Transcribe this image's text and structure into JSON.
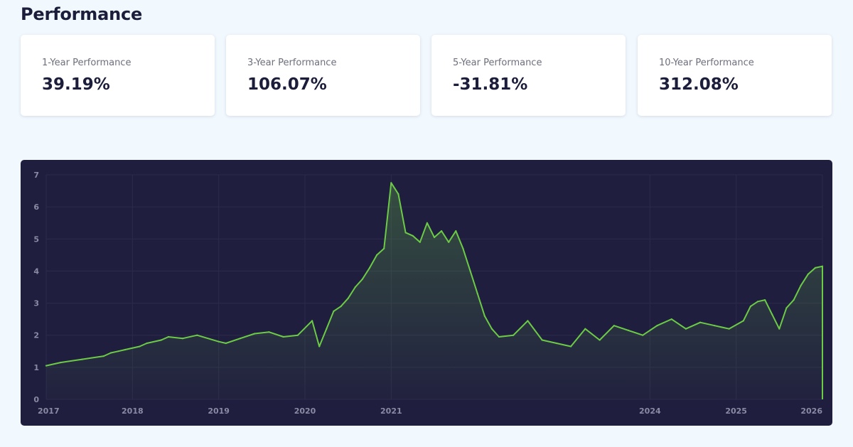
{
  "page": {
    "title": "Performance"
  },
  "cards": [
    {
      "label": "1-Year Performance",
      "value": "39.19%"
    },
    {
      "label": "3-Year Performance",
      "value": "106.07%"
    },
    {
      "label": "5-Year Performance",
      "value": "-31.81%"
    },
    {
      "label": "10-Year Performance",
      "value": "312.08%"
    }
  ],
  "colors": {
    "line": "#6ccb45",
    "chart_background": "#201e3f",
    "grid": "#2c2b4a",
    "tick_text": "#8b8aa3"
  },
  "chart_data": {
    "type": "area",
    "title": "",
    "xlabel": "",
    "ylabel": "",
    "x_tick_labels": [
      "2017",
      "2018",
      "2019",
      "2020",
      "2021",
      "2024",
      "2025",
      "2026"
    ],
    "y_tick_labels": [
      "0",
      "1",
      "2",
      "3",
      "4",
      "5",
      "6",
      "7"
    ],
    "ylim": [
      0,
      7
    ],
    "xlim": [
      "2017-01",
      "2026-01"
    ],
    "grid": true,
    "series": [
      {
        "x": [
          "2017-01",
          "2017-03",
          "2017-06",
          "2017-09",
          "2017-10",
          "2017-11",
          "2017-12",
          "2018-02",
          "2018-03",
          "2018-05",
          "2018-06",
          "2018-08",
          "2018-10",
          "2019-01",
          "2019-02",
          "2019-04",
          "2019-06",
          "2019-08",
          "2019-10",
          "2019-12",
          "2020-02",
          "2020-03",
          "2020-04",
          "2020-05",
          "2020-06",
          "2020-07",
          "2020-08",
          "2020-09",
          "2020-10",
          "2020-11",
          "2020-12",
          "2021-01",
          "2021-02",
          "2021-03",
          "2021-04",
          "2021-05",
          "2021-06",
          "2021-07",
          "2021-08",
          "2021-09",
          "2021-10",
          "2021-11",
          "2021-12",
          "2022-01",
          "2022-02",
          "2022-03",
          "2022-04",
          "2022-06",
          "2022-08",
          "2022-10",
          "2022-12",
          "2023-02",
          "2023-04",
          "2023-06",
          "2023-08",
          "2023-10",
          "2023-12",
          "2024-02",
          "2024-04",
          "2024-06",
          "2024-08",
          "2024-10",
          "2024-12",
          "2025-02",
          "2025-03",
          "2025-04",
          "2025-05",
          "2025-06",
          "2025-07",
          "2025-08",
          "2025-09",
          "2025-10",
          "2025-11",
          "2025-12",
          "2026-01"
        ],
        "y": [
          1.05,
          1.15,
          1.25,
          1.35,
          1.45,
          1.5,
          1.55,
          1.65,
          1.75,
          1.85,
          1.95,
          1.9,
          2.0,
          1.8,
          1.75,
          1.9,
          2.05,
          2.1,
          1.95,
          2.0,
          2.45,
          1.65,
          2.2,
          2.75,
          2.9,
          3.15,
          3.5,
          3.75,
          4.1,
          4.5,
          4.7,
          6.75,
          6.4,
          5.2,
          5.1,
          4.9,
          5.5,
          5.05,
          5.25,
          4.9,
          5.25,
          4.7,
          4.0,
          3.3,
          2.6,
          2.2,
          1.95,
          2.0,
          2.45,
          1.85,
          1.75,
          1.65,
          2.2,
          1.85,
          2.3,
          2.15,
          2.0,
          2.3,
          2.5,
          2.2,
          2.4,
          2.3,
          2.2,
          2.45,
          2.9,
          3.05,
          3.1,
          2.65,
          2.2,
          2.85,
          3.1,
          3.55,
          3.9,
          4.1,
          4.15
        ]
      }
    ]
  }
}
